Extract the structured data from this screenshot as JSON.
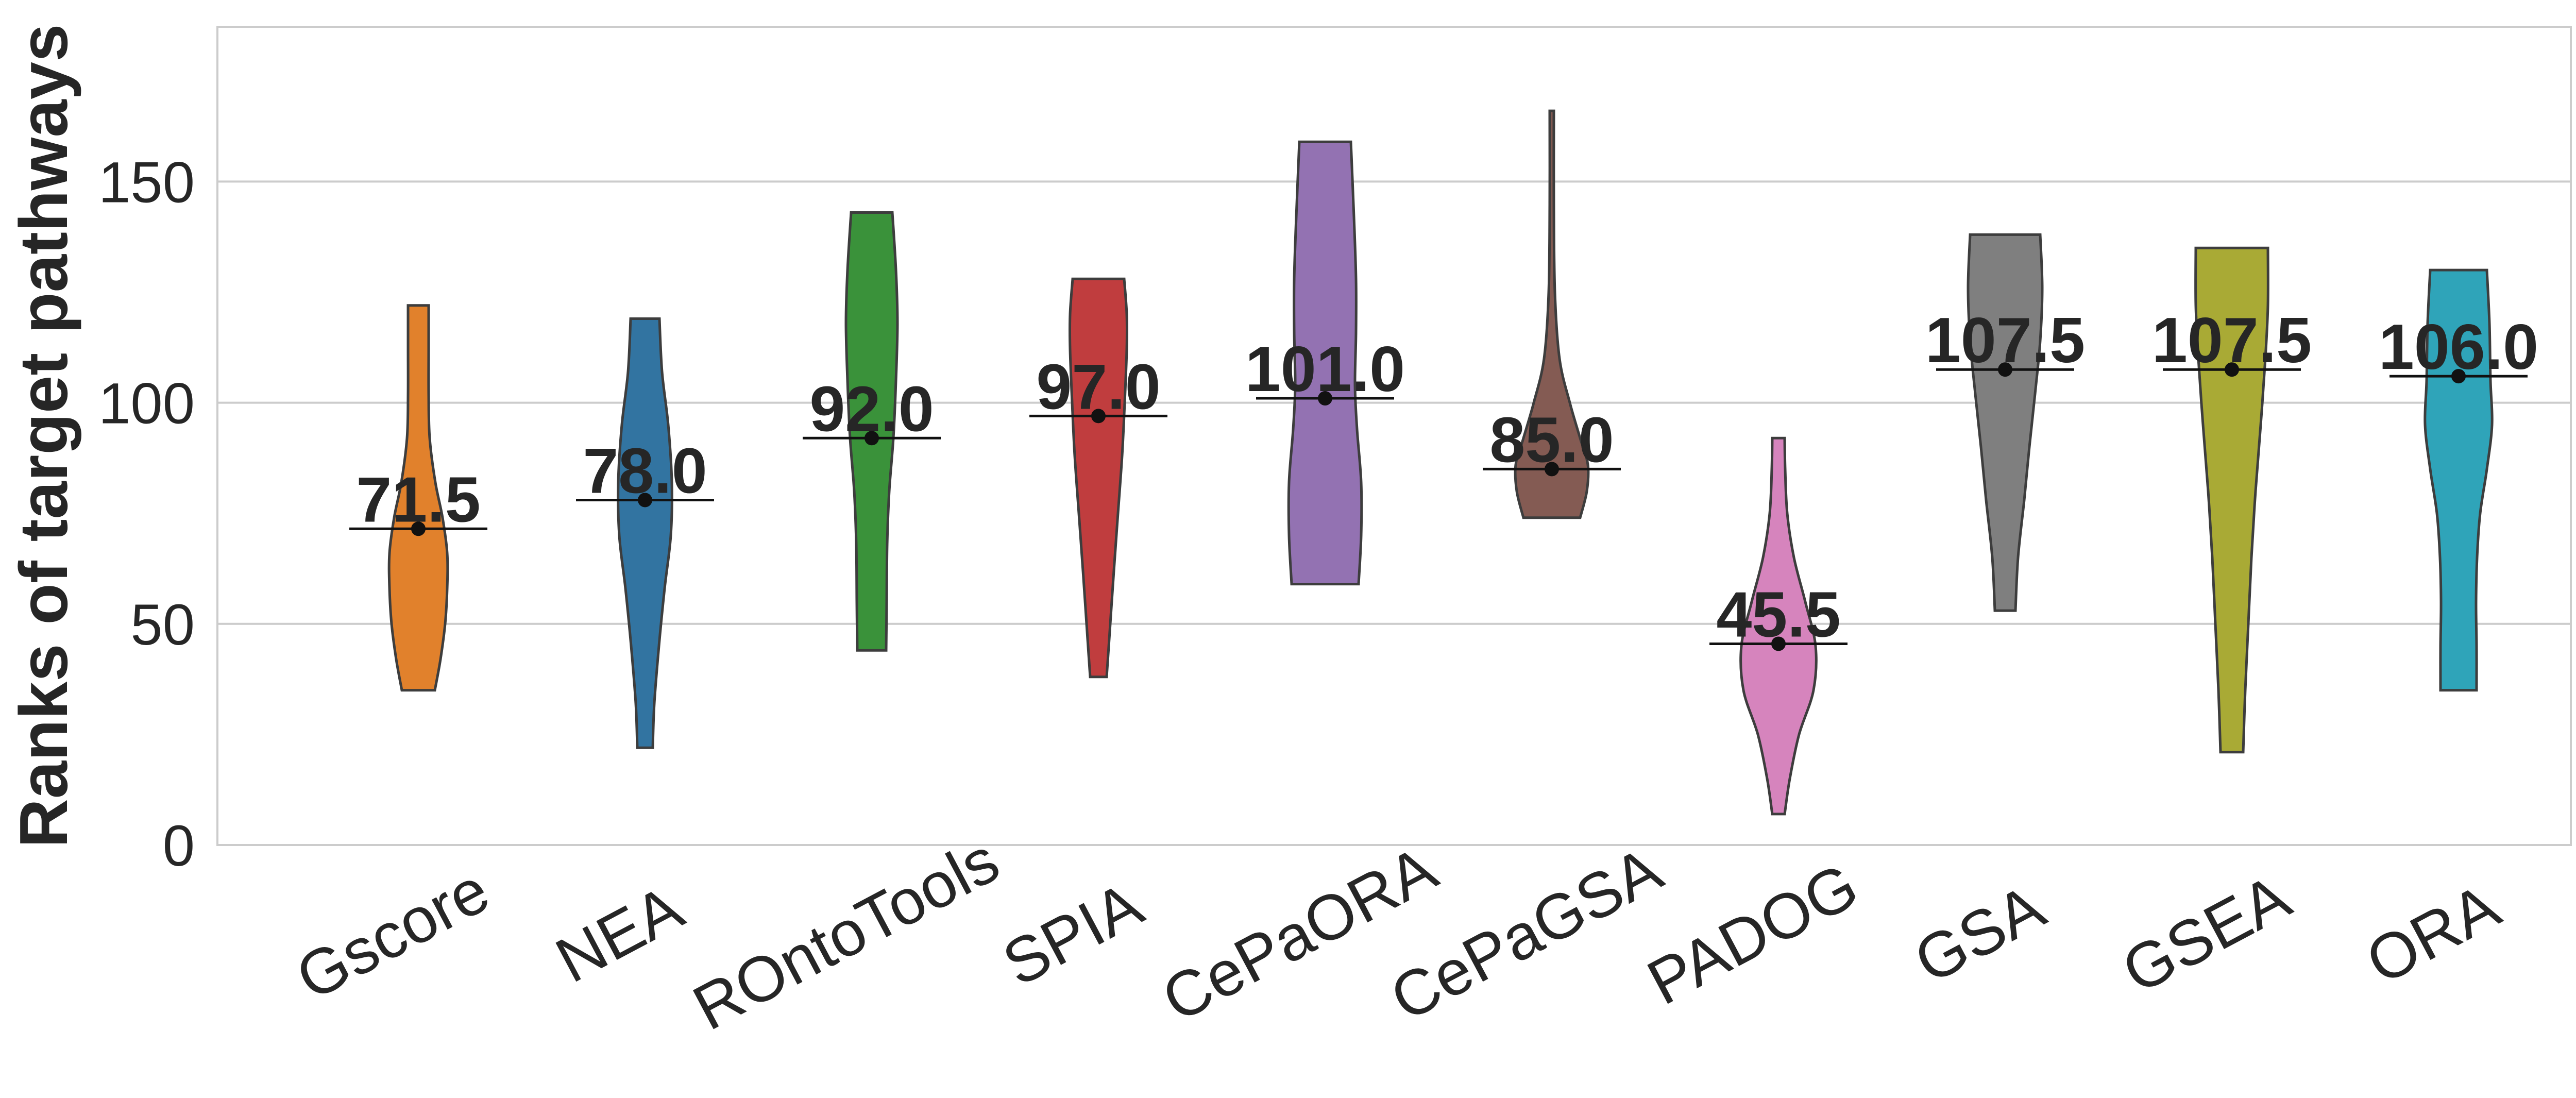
{
  "chart_data": {
    "type": "violin",
    "title": "",
    "xlabel": "",
    "ylabel": "Ranks of target pathways",
    "ylim": [
      0,
      185
    ],
    "yticks": [
      0,
      50,
      100,
      150
    ],
    "grid": "y",
    "median_markers": true,
    "categories": [
      "Gscore",
      "NEA",
      "ROntoTools",
      "SPIA",
      "CePaORA",
      "CePaGSA",
      "PADOG",
      "GSA",
      "GSEA",
      "ORA"
    ],
    "series": [
      {
        "category": "Gscore",
        "color": "#e1812c",
        "median": 71.5,
        "median_label": "71.5",
        "min": 35,
        "max": 122,
        "density": [
          [
            35,
            0.32
          ],
          [
            42,
            0.43
          ],
          [
            50,
            0.52
          ],
          [
            58,
            0.56
          ],
          [
            66,
            0.56
          ],
          [
            74,
            0.47
          ],
          [
            82,
            0.33
          ],
          [
            92,
            0.22
          ],
          [
            102,
            0.2
          ],
          [
            112,
            0.2
          ],
          [
            122,
            0.2
          ]
        ]
      },
      {
        "category": "NEA",
        "color": "#3274a1",
        "median": 78.0,
        "median_label": "78.0",
        "min": 22,
        "max": 119,
        "density": [
          [
            22,
            0.15
          ],
          [
            32,
            0.18
          ],
          [
            45,
            0.27
          ],
          [
            58,
            0.38
          ],
          [
            70,
            0.5
          ],
          [
            82,
            0.52
          ],
          [
            95,
            0.45
          ],
          [
            107,
            0.33
          ],
          [
            119,
            0.28
          ]
        ]
      },
      {
        "category": "ROntoTools",
        "color": "#3a923a",
        "median": 92.0,
        "median_label": "92.0",
        "min": 44,
        "max": 143,
        "density": [
          [
            44,
            0.28
          ],
          [
            55,
            0.29
          ],
          [
            68,
            0.3
          ],
          [
            80,
            0.34
          ],
          [
            92,
            0.42
          ],
          [
            105,
            0.47
          ],
          [
            118,
            0.5
          ],
          [
            130,
            0.47
          ],
          [
            143,
            0.4
          ]
        ]
      },
      {
        "category": "SPIA",
        "color": "#c03d3e",
        "median": 97.0,
        "median_label": "97.0",
        "min": 38,
        "max": 128,
        "density": [
          [
            38,
            0.16
          ],
          [
            50,
            0.23
          ],
          [
            62,
            0.3
          ],
          [
            75,
            0.38
          ],
          [
            88,
            0.46
          ],
          [
            100,
            0.51
          ],
          [
            112,
            0.55
          ],
          [
            120,
            0.55
          ],
          [
            128,
            0.5
          ]
        ]
      },
      {
        "category": "CePaORA",
        "color": "#9372b2",
        "median": 101.0,
        "median_label": "101.0",
        "min": 59,
        "max": 159,
        "density": [
          [
            59,
            0.65
          ],
          [
            70,
            0.7
          ],
          [
            82,
            0.7
          ],
          [
            94,
            0.62
          ],
          [
            104,
            0.58
          ],
          [
            116,
            0.6
          ],
          [
            128,
            0.6
          ],
          [
            142,
            0.56
          ],
          [
            159,
            0.5
          ]
        ]
      },
      {
        "category": "CePaGSA",
        "color": "#845b53",
        "median": 85.0,
        "median_label": "85.0",
        "min": 74,
        "max": 166,
        "density": [
          [
            74,
            0.55
          ],
          [
            80,
            0.68
          ],
          [
            86,
            0.7
          ],
          [
            92,
            0.55
          ],
          [
            100,
            0.35
          ],
          [
            110,
            0.15
          ],
          [
            125,
            0.06
          ],
          [
            145,
            0.04
          ],
          [
            166,
            0.04
          ]
        ]
      },
      {
        "category": "PADOG",
        "color": "#d684bd",
        "median": 45.5,
        "median_label": "45.5",
        "min": 7,
        "max": 92,
        "density": [
          [
            7,
            0.12
          ],
          [
            15,
            0.22
          ],
          [
            25,
            0.4
          ],
          [
            35,
            0.68
          ],
          [
            45,
            0.72
          ],
          [
            55,
            0.52
          ],
          [
            65,
            0.3
          ],
          [
            75,
            0.17
          ],
          [
            85,
            0.13
          ],
          [
            92,
            0.12
          ]
        ]
      },
      {
        "category": "GSA",
        "color": "#7f7f7f",
        "median": 107.5,
        "median_label": "107.5",
        "min": 53,
        "max": 138,
        "density": [
          [
            53,
            0.2
          ],
          [
            65,
            0.25
          ],
          [
            78,
            0.37
          ],
          [
            90,
            0.47
          ],
          [
            102,
            0.58
          ],
          [
            114,
            0.68
          ],
          [
            126,
            0.72
          ],
          [
            138,
            0.68
          ]
        ]
      },
      {
        "category": "GSEA",
        "color": "#a9aa35",
        "median": 107.5,
        "median_label": "107.5",
        "min": 21,
        "max": 135,
        "density": [
          [
            21,
            0.22
          ],
          [
            35,
            0.26
          ],
          [
            50,
            0.32
          ],
          [
            65,
            0.38
          ],
          [
            80,
            0.46
          ],
          [
            95,
            0.56
          ],
          [
            110,
            0.65
          ],
          [
            122,
            0.7
          ],
          [
            135,
            0.7
          ]
        ]
      },
      {
        "category": "ORA",
        "color": "#2fa4b9",
        "median": 106.0,
        "median_label": "106.0",
        "min": 35,
        "max": 130,
        "density": [
          [
            35,
            0.35
          ],
          [
            45,
            0.35
          ],
          [
            55,
            0.34
          ],
          [
            65,
            0.36
          ],
          [
            75,
            0.42
          ],
          [
            85,
            0.55
          ],
          [
            95,
            0.65
          ],
          [
            105,
            0.62
          ],
          [
            118,
            0.6
          ],
          [
            130,
            0.55
          ]
        ]
      }
    ]
  }
}
